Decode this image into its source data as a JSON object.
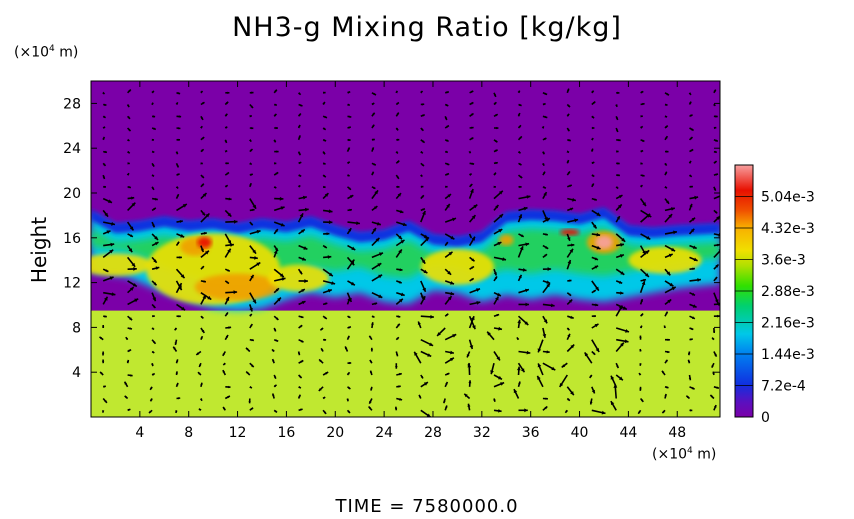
{
  "chart_data": {
    "type": "heatmap",
    "title": "NH3-g Mixing Ratio [kg/kg]",
    "ylabel": "Height",
    "x_unit": "(×10",
    "x_unit_exp": "4",
    "x_unit_tail": " m)",
    "y_unit": "(×10",
    "y_unit_exp": "4",
    "y_unit_tail": " m)",
    "xlim": [
      0,
      51.5
    ],
    "ylim": [
      0,
      30
    ],
    "x_ticks": [
      4,
      8,
      12,
      16,
      20,
      24,
      28,
      32,
      36,
      40,
      44,
      48
    ],
    "y_ticks": [
      4,
      8,
      12,
      16,
      20,
      24,
      28
    ],
    "colorbar": {
      "range": [
        0,
        0.00576
      ],
      "tick_labels": [
        "0",
        "7.2e-4",
        "1.44e-3",
        "2.16e-3",
        "2.88e-3",
        "3.6e-3",
        "4.32e-3",
        "5.04e-3"
      ],
      "tick_values": [
        0,
        0.00072,
        0.00144,
        0.00216,
        0.00288,
        0.0036,
        0.00432,
        0.00504
      ],
      "colors": [
        "#7b00a8",
        "#4a1ec8",
        "#1040e8",
        "#0090f0",
        "#00d0e8",
        "#00d070",
        "#30e000",
        "#b0e000",
        "#f0e000",
        "#f8b000",
        "#f05000",
        "#e81000",
        "#f07070",
        "#f8a0a0"
      ]
    },
    "regions": {
      "lower_layer_value": 0.0033,
      "upper_layer_value": 0.0,
      "cloud_layer_base_height": 9.5,
      "cloud_layer_top_height": 17.5
    },
    "overlay": "wind vectors (arrows)",
    "footer": "TIME = 7580000.0"
  },
  "colors": {
    "purple": "#7b00a8",
    "lower_green": "#c0e830",
    "cyan": "#00c8e8",
    "green": "#20d060",
    "yellow": "#f0e000",
    "orange": "#f0a000",
    "red": "#e81000",
    "pink": "#f8a0a0",
    "blue": "#1030e0"
  }
}
